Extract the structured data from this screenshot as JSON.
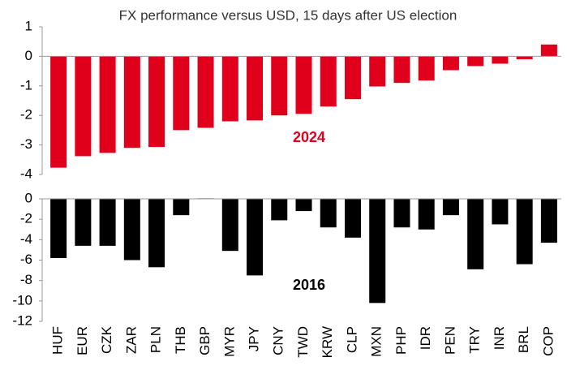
{
  "chart_data": [
    {
      "type": "bar",
      "title": "FX performance versus USD, 15 days after US election",
      "series": [
        {
          "name": "2024",
          "color": "#e0001b",
          "values": [
            -3.77,
            -3.38,
            -3.27,
            -3.1,
            -3.07,
            -2.5,
            -2.42,
            -2.2,
            -2.17,
            -2.0,
            -1.95,
            -1.7,
            -1.45,
            -1.02,
            -0.9,
            -0.82,
            -0.47,
            -0.33,
            -0.25,
            -0.1,
            0.4
          ]
        }
      ],
      "ylim": [
        -4,
        1
      ],
      "yticks": [
        -4,
        -3,
        -2,
        -1,
        0,
        1
      ]
    },
    {
      "type": "bar",
      "categories": [
        "HUF",
        "EUR",
        "CZK",
        "ZAR",
        "PLN",
        "THB",
        "GBP",
        "MYR",
        "JPY",
        "CNY",
        "TWD",
        "KRW",
        "CLP",
        "MXN",
        "PHP",
        "IDR",
        "PEN",
        "TRY",
        "INR",
        "BRL",
        "COP"
      ],
      "series": [
        {
          "name": "2016",
          "color": "#000000",
          "values": [
            -5.8,
            -4.6,
            -4.6,
            -6.0,
            -6.7,
            -1.6,
            0.05,
            -5.1,
            -7.5,
            -2.1,
            -1.2,
            -2.8,
            -3.8,
            -10.2,
            -2.8,
            -3.0,
            -1.6,
            -6.9,
            -2.5,
            -6.4,
            -4.3
          ]
        }
      ],
      "ylim": [
        -12,
        0
      ],
      "yticks": [
        -12,
        -10,
        -8,
        -6,
        -4,
        -2,
        0
      ]
    }
  ]
}
